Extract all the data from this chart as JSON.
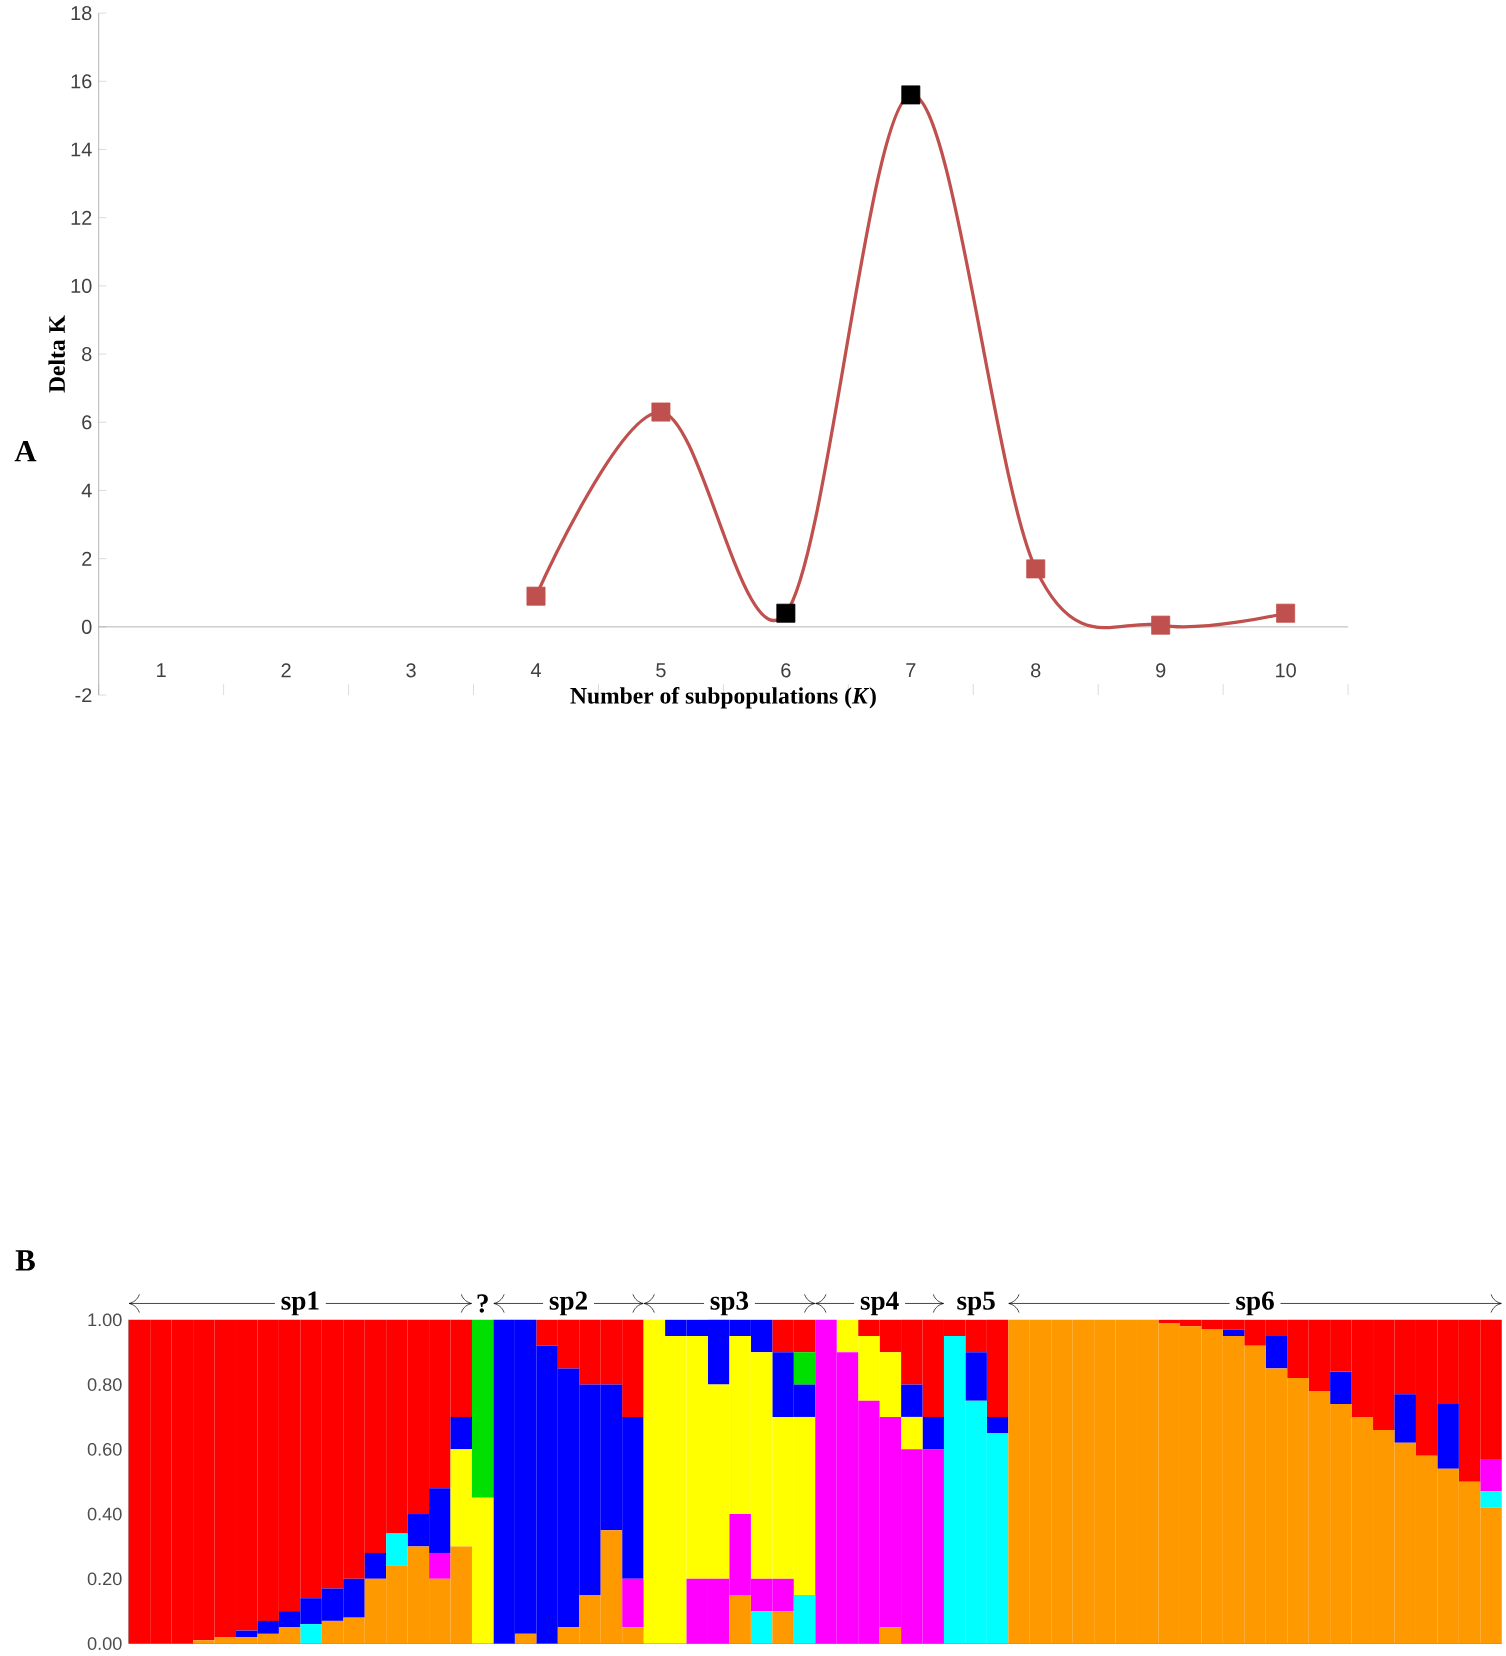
{
  "chart_data": [
    {
      "type": "line",
      "title": "A",
      "xlabel": "Number of subpopulations (*K*)",
      "ylabel": "Delta K",
      "categories": [
        "1",
        "2",
        "3",
        "4",
        "5",
        "6",
        "7",
        "8",
        "9",
        "10"
      ],
      "values": [
        null,
        null,
        null,
        0.9,
        6.3,
        0.4,
        15.6,
        1.7,
        0.05,
        0.4
      ],
      "color": "#c0504d",
      "colors": [
        "#c0504d",
        "#c0504d",
        "#c0504d",
        "#c0504d",
        "#c0504d",
        "#000000",
        "#000000",
        "#c0504d",
        "#c0504d",
        "#c0504d"
      ],
      "marker": "square",
      "line_style": "solid",
      "ylim": [
        -2,
        18
      ],
      "yticks": [
        -2,
        0,
        2,
        4,
        6,
        8,
        10,
        12,
        14,
        16,
        18
      ]
    },
    {
      "type": "bar",
      "stacked": true,
      "title": "B",
      "annotations": [
        "sp1",
        "?",
        "sp2",
        "sp3",
        "sp4",
        "sp5",
        "sp6"
      ],
      "categories": [
        null,
        null,
        null,
        null,
        null,
        null,
        null,
        null,
        null,
        null,
        null,
        null,
        null,
        null,
        null,
        null,
        null,
        null,
        null,
        null,
        null,
        null,
        null,
        null,
        null,
        null,
        null,
        null,
        null,
        null,
        null,
        null,
        null,
        null,
        null,
        null,
        null,
        null,
        null,
        null,
        null,
        null,
        null,
        null,
        null,
        null,
        null,
        null,
        null,
        null,
        null,
        null,
        null,
        null,
        null,
        null,
        null,
        null,
        null,
        null,
        null,
        null,
        null,
        null
      ],
      "ylim": [
        0,
        1
      ],
      "yticks": [
        {
          "value": 0,
          "label": "0.00"
        },
        {
          "value": 0.2,
          "label": "0.20"
        },
        {
          "value": 0.4,
          "label": "0.40"
        },
        {
          "value": 0.6,
          "label": "0.60"
        },
        {
          "value": 0.8,
          "label": "0.80"
        },
        {
          "value": 1,
          "label": "1.00"
        }
      ],
      "series": [
        {
          "color": "#ff9900",
          "values": [
            0,
            0,
            0,
            0.01,
            0.02,
            0.02,
            0.03,
            0.05,
            0,
            0.07,
            0.08,
            0.2,
            0.24,
            0.3,
            0.2,
            0.3,
            0,
            0,
            0.03,
            0,
            0.05,
            0.15,
            0.35,
            0.05,
            0,
            0,
            0,
            0,
            0.15,
            0,
            0.1,
            0,
            0,
            0,
            0,
            0.05,
            0,
            0,
            0,
            0,
            0,
            1,
            1,
            1,
            1,
            1,
            1,
            1,
            0.99,
            0.98,
            0.97,
            0.95,
            0.92,
            0.85,
            0.82,
            0.78,
            0.74,
            0.7,
            0.66,
            0.62,
            0.58,
            0.54,
            0.5,
            0.42
          ]
        },
        {
          "color": "#00ffff",
          "values": [
            0,
            0,
            0,
            0,
            0,
            0,
            0,
            0,
            0.06,
            0,
            0,
            0,
            0.1,
            0,
            0,
            0,
            0,
            0,
            0,
            0,
            0,
            0,
            0,
            0,
            0,
            0,
            0,
            0,
            0,
            0.1,
            0,
            0.15,
            0,
            0,
            0,
            0,
            0,
            0,
            0.95,
            0.75,
            0.65,
            0,
            0,
            0,
            0,
            0,
            0,
            0,
            0,
            0,
            0,
            0,
            0,
            0,
            0,
            0,
            0,
            0,
            0,
            0,
            0,
            0,
            0,
            0.05
          ]
        },
        {
          "color": "#ff00ff",
          "values": [
            0,
            0,
            0,
            0,
            0,
            0,
            0,
            0,
            0,
            0,
            0,
            0,
            0,
            0,
            0.08,
            0,
            0,
            0,
            0,
            0,
            0,
            0,
            0,
            0.15,
            0,
            0,
            0.2,
            0.2,
            0.25,
            0.1,
            0.1,
            0,
            1,
            0.9,
            0.75,
            0.65,
            0.6,
            0.6,
            0,
            0,
            0,
            0,
            0,
            0,
            0,
            0,
            0,
            0,
            0,
            0,
            0,
            0,
            0,
            0,
            0,
            0,
            0,
            0,
            0,
            0,
            0,
            0,
            0,
            0.1
          ]
        },
        {
          "color": "#ffff00",
          "values": [
            0,
            0,
            0,
            0,
            0,
            0,
            0,
            0,
            0,
            0,
            0,
            0,
            0,
            0,
            0,
            0.3,
            0.45,
            0,
            0,
            0,
            0,
            0,
            0,
            0,
            1,
            0.95,
            0.75,
            0.6,
            0.55,
            0.7,
            0.5,
            0.55,
            0,
            0.1,
            0.2,
            0.2,
            0.1,
            0,
            0,
            0,
            0,
            0,
            0,
            0,
            0,
            0,
            0,
            0,
            0,
            0,
            0,
            0,
            0,
            0,
            0,
            0,
            0,
            0,
            0,
            0,
            0,
            0,
            0,
            0
          ]
        },
        {
          "color": "#0000ff",
          "values": [
            0,
            0,
            0,
            0,
            0,
            0.02,
            0.04,
            0.05,
            0.08,
            0.1,
            0.12,
            0.08,
            0,
            0.1,
            0.2,
            0.1,
            0,
            1,
            0.97,
            0.92,
            0.8,
            0.65,
            0.45,
            0.5,
            0,
            0.05,
            0.05,
            0.2,
            0.05,
            0.1,
            0.2,
            0.1,
            0,
            0,
            0,
            0,
            0.1,
            0.1,
            0,
            0.15,
            0.05,
            0,
            0,
            0,
            0,
            0,
            0,
            0,
            0,
            0,
            0,
            0.02,
            0,
            0.1,
            0,
            0,
            0.1,
            0,
            0,
            0.15,
            0,
            0.2,
            0,
            0
          ]
        },
        {
          "color": "#00e000",
          "values": [
            0,
            0,
            0,
            0,
            0,
            0,
            0,
            0,
            0,
            0,
            0,
            0,
            0,
            0,
            0,
            0,
            0.55,
            0,
            0,
            0,
            0,
            0,
            0,
            0,
            0,
            0,
            0,
            0,
            0,
            0,
            0,
            0.1,
            0,
            0,
            0,
            0,
            0,
            0,
            0,
            0,
            0,
            0,
            0,
            0,
            0,
            0,
            0,
            0,
            0,
            0,
            0,
            0,
            0,
            0,
            0,
            0,
            0,
            0,
            0,
            0,
            0,
            0,
            0,
            0
          ]
        },
        {
          "color": "#ff0000",
          "values": [
            1,
            1,
            1,
            0.99,
            0.98,
            0.96,
            0.93,
            0.9,
            0.86,
            0.83,
            0.8,
            0.72,
            0.66,
            0.6,
            0.52,
            0.3,
            0,
            0,
            0,
            0.08,
            0.15,
            0.2,
            0.2,
            0.3,
            0,
            0,
            0,
            0,
            0,
            0,
            0.1,
            0.1,
            0,
            0,
            0.05,
            0.1,
            0.2,
            0.3,
            0.05,
            0.1,
            0.3,
            0,
            0,
            0,
            0,
            0,
            0,
            0,
            0.01,
            0.02,
            0.03,
            0.03,
            0.08,
            0.05,
            0.18,
            0.22,
            0.16,
            0.3,
            0.34,
            0.23,
            0.42,
            0.26,
            0.5,
            0.43
          ]
        }
      ]
    }
  ]
}
